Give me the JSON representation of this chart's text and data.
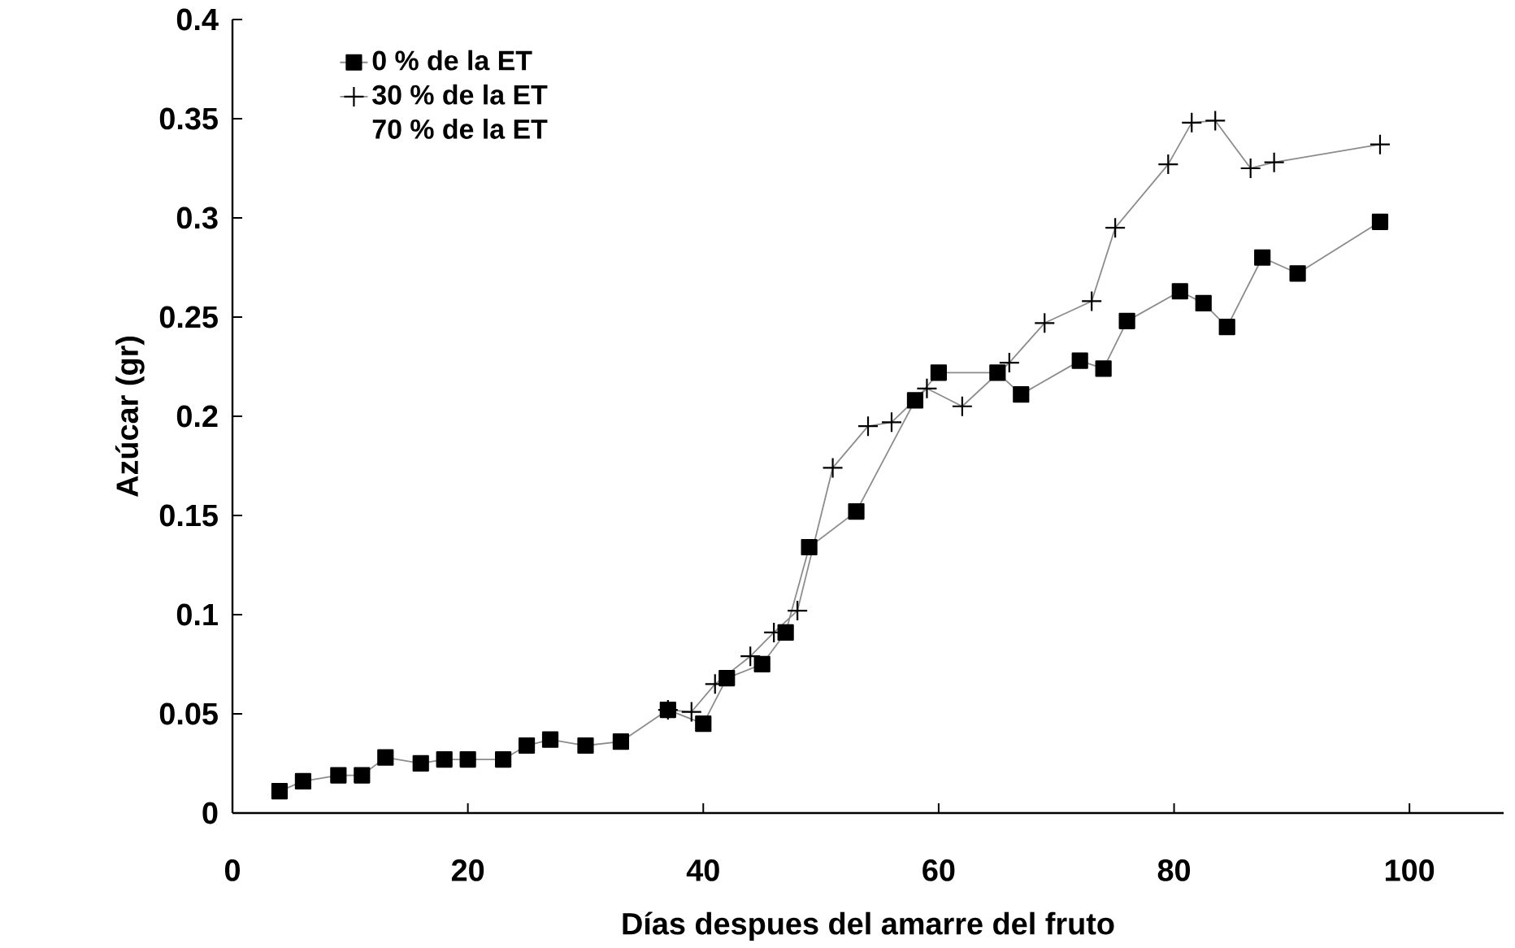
{
  "chart_data": {
    "type": "line",
    "xlabel": "Días despues del amarre del fruto",
    "ylabel": "Azúcar (gr)",
    "xlim": [
      0,
      108
    ],
    "ylim": [
      0,
      0.4
    ],
    "xticks": [
      0,
      20,
      40,
      60,
      80,
      100
    ],
    "yticks": [
      0,
      0.05,
      0.1,
      0.15,
      0.2,
      0.25,
      0.3,
      0.35,
      0.4
    ],
    "grid": false,
    "legend": "top left",
    "annotations": [
      "70 % de la ET"
    ],
    "series": [
      {
        "name": "0 % de la ET",
        "color": "#000000",
        "marker": "square",
        "x": [
          4,
          6,
          9,
          11,
          13,
          16,
          18,
          20,
          23,
          25,
          27,
          30,
          33,
          37,
          40,
          42,
          45,
          47,
          49,
          53,
          58,
          60,
          65,
          67,
          72,
          74,
          76,
          80.5,
          82.5,
          84.5,
          87.5,
          90.5,
          97.5
        ],
        "values": [
          0.011,
          0.016,
          0.019,
          0.019,
          0.028,
          0.025,
          0.027,
          0.027,
          0.027,
          0.034,
          0.037,
          0.034,
          0.036,
          0.052,
          0.045,
          0.068,
          0.075,
          0.091,
          0.134,
          0.152,
          0.208,
          0.222,
          0.222,
          0.211,
          0.228,
          0.224,
          0.248,
          0.263,
          0.257,
          0.245,
          0.28,
          0.272,
          0.298
        ]
      },
      {
        "name": "30 % de la ET",
        "color": "#000000",
        "marker": "cross",
        "x": [
          37,
          39,
          41,
          44,
          46,
          48,
          51,
          54,
          56,
          59,
          62,
          66,
          69,
          73,
          75,
          79.5,
          81.5,
          83.5,
          86.5,
          88.5,
          97.5
        ],
        "values": [
          0.052,
          0.051,
          0.065,
          0.079,
          0.091,
          0.102,
          0.174,
          0.195,
          0.197,
          0.214,
          0.205,
          0.227,
          0.247,
          0.258,
          0.295,
          0.327,
          0.348,
          0.349,
          0.325,
          0.328,
          0.337
        ]
      }
    ]
  }
}
